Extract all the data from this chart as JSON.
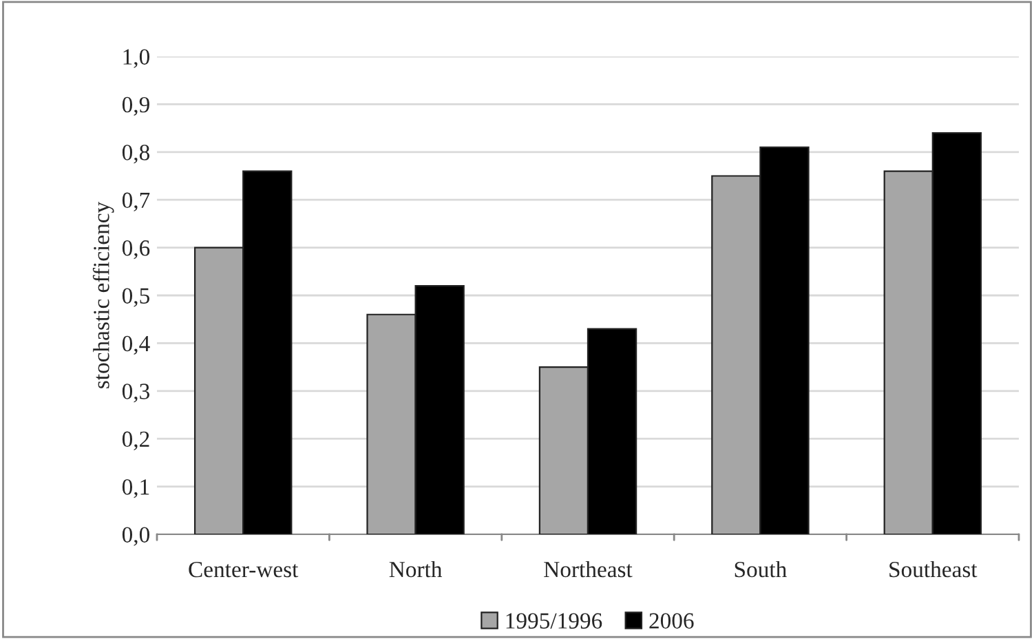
{
  "chart_data": {
    "type": "bar",
    "ylabel": "stochastic efficiency",
    "categories": [
      "Center-west",
      "North",
      "Northeast",
      "South",
      "Southeast"
    ],
    "series": [
      {
        "name": "1995/1996",
        "color": "#a6a6a6",
        "values": [
          0.6,
          0.46,
          0.35,
          0.75,
          0.76
        ]
      },
      {
        "name": "2006",
        "color": "#000000",
        "values": [
          0.76,
          0.52,
          0.43,
          0.81,
          0.84
        ]
      }
    ],
    "ylim": [
      0,
      1.0
    ],
    "yticks": [
      {
        "value": 0,
        "label": "0,0"
      },
      {
        "value": 0.1,
        "label": "0,1"
      },
      {
        "value": 0.2,
        "label": "0,2"
      },
      {
        "value": 0.3,
        "label": "0,3"
      },
      {
        "value": 0.4,
        "label": "0,4"
      },
      {
        "value": 0.5,
        "label": "0,5"
      },
      {
        "value": 0.6,
        "label": "0,6"
      },
      {
        "value": 0.7,
        "label": "0,7"
      },
      {
        "value": 0.8,
        "label": "0,8"
      },
      {
        "value": 0.9,
        "label": "0,9"
      },
      {
        "value": 1.0,
        "label": "1,0"
      }
    ],
    "grid": "y",
    "legend": "bottom"
  }
}
